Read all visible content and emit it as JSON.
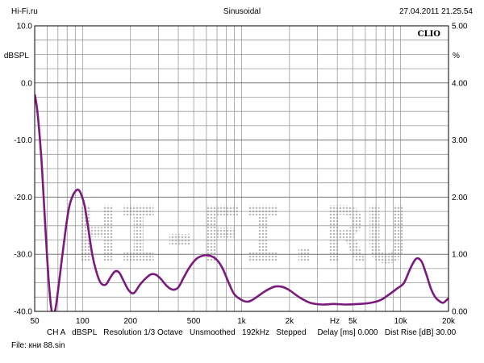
{
  "header": {
    "left": "Hi-Fi.ru",
    "center": "Sinusoidal",
    "right": "27.04.2011 21.25.54"
  },
  "brand": "CLIO",
  "watermark": "HI-FI.RU",
  "colors": {
    "curve": "#7b1a7d",
    "grid": "#9a9a9a",
    "frame": "#000000"
  },
  "chart_data": {
    "type": "line",
    "title": "Sinusoidal",
    "xscale": "log",
    "xlim": [
      50,
      20000
    ],
    "ylim": [
      -40,
      10
    ],
    "y2lim": [
      0,
      5
    ],
    "ylabel": "dBSPL",
    "y2label": "%",
    "xlabel": "Hz",
    "grid": true,
    "x_ticks": [
      50,
      100,
      200,
      500,
      1000,
      2000,
      5000,
      10000,
      20000
    ],
    "x_tick_labels": [
      "50",
      "100",
      "200",
      "500",
      "1k",
      "2k",
      "5k",
      "10k",
      "20k"
    ],
    "y_ticks": [
      10,
      0,
      -10,
      -20,
      -30,
      -40
    ],
    "y_tick_labels": [
      "10.0",
      "0.0",
      "-10.0",
      "-20.0",
      "-30.0",
      "-40.0"
    ],
    "y2_ticks": [
      5,
      4,
      3,
      2,
      1,
      0
    ],
    "y2_tick_labels": [
      "5.00",
      "4.00",
      "3.00",
      "2.00",
      "1.00",
      "0.00"
    ],
    "series": [
      {
        "x": [
          50,
          52,
          55,
          58,
          61,
          64,
          67,
          70,
          74,
          78,
          82,
          86,
          90,
          94,
          98,
          103,
          108,
          115,
          122,
          130,
          140,
          150,
          160,
          170,
          180,
          195,
          210,
          230,
          250,
          270,
          290,
          310,
          340,
          370,
          400,
          430,
          470,
          520,
          580,
          640,
          700,
          760,
          830,
          900,
          1000,
          1100,
          1200,
          1400,
          1600,
          1800,
          2000,
          2300,
          2700,
          3200,
          3800,
          4500,
          5500,
          6500,
          7500,
          8500,
          9500,
          10500,
          11500,
          12500,
          13500,
          14500,
          15500,
          16500,
          17500,
          18500,
          19500,
          20000
        ],
        "y": [
          -2,
          -5,
          -13,
          -24,
          -34,
          -40,
          -40,
          -36.5,
          -31,
          -26,
          -22,
          -20,
          -19,
          -18.7,
          -19.5,
          -21.5,
          -25,
          -30,
          -33,
          -35,
          -35.3,
          -34,
          -33,
          -33.2,
          -34.5,
          -36.3,
          -36.8,
          -35.3,
          -34.2,
          -33.5,
          -33.6,
          -34.3,
          -35.6,
          -36.2,
          -35.8,
          -34.2,
          -32.3,
          -30.8,
          -30.2,
          -30.3,
          -31,
          -32.5,
          -35,
          -37,
          -38,
          -38.3,
          -37.8,
          -36.5,
          -35.7,
          -35.7,
          -36.3,
          -37.5,
          -38.5,
          -38.8,
          -38.7,
          -38.8,
          -38.7,
          -38.5,
          -38,
          -37,
          -36,
          -35,
          -32.5,
          -30.8,
          -31.2,
          -33.5,
          -36,
          -37.5,
          -38.2,
          -38.5,
          -38,
          -37.7
        ]
      }
    ]
  },
  "footer": {
    "channel": "CH A",
    "units": "dBSPL",
    "resolution": "Resolution 1/3 Octave",
    "smoothing": "Unsmoothed",
    "rate": "192kHz",
    "mode": "Stepped",
    "delay": "Delay [ms] 0.000",
    "dist_rise": "Dist Rise [dB] 30.00",
    "file": "File: кни 88.sin"
  }
}
